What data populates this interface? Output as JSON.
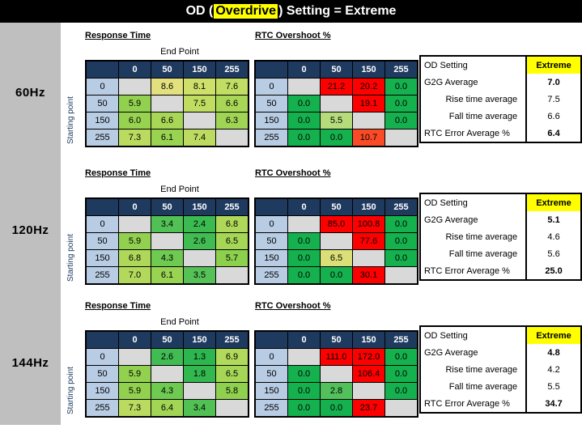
{
  "title": {
    "prefix": "OD (",
    "highlight": "Overdrive",
    "suffix": ") Setting = Extreme"
  },
  "shared": {
    "response_title": "Response Time",
    "overshoot_title": "RTC Overshoot %",
    "end_point_label": "End Point",
    "starting_point_label": "Starting point",
    "axis_values": [
      "0",
      "50",
      "150",
      "255"
    ]
  },
  "summary_labels": {
    "od": "OD Setting",
    "g2g": "G2G Average",
    "rise": "Rise time average",
    "fall": "Fall time average",
    "rtc": "RTC Error Average %"
  },
  "colors": {
    "header_navy": "#1F3A5F",
    "row_header_blue": "#B8CCE4",
    "diagonal_gray": "#D9D9D9",
    "sidebar_gray": "#BFBFBF",
    "highlight_yellow": "#FFFF00",
    "zero_green": "#15B14E",
    "overshoot_red": "#FF0000"
  },
  "chart_data": {
    "type": "heatmap",
    "x_axis": "End Point",
    "y_axis": "Starting point",
    "categories": [
      0,
      50,
      150,
      255
    ],
    "sections": [
      {
        "frequency": "60Hz",
        "response_time": {
          "values": [
            [
              null,
              8.6,
              8.1,
              7.6
            ],
            [
              5.9,
              null,
              7.5,
              6.6
            ],
            [
              6.0,
              6.6,
              null,
              6.3
            ],
            [
              7.3,
              6.1,
              7.4,
              null
            ]
          ],
          "colors": [
            [
              null,
              "#E2E17E",
              "#CEE06B",
              "#C2DD63"
            ],
            [
              "#92D14F",
              null,
              "#C0DC61",
              "#A8D657"
            ],
            [
              "#97D251",
              "#A8D657",
              null,
              "#9FD454"
            ],
            [
              "#BADB5F",
              "#99D352",
              "#BDDB60",
              null
            ]
          ]
        },
        "rtc_overshoot": {
          "values": [
            [
              null,
              21.2,
              20.2,
              0.0
            ],
            [
              0.0,
              null,
              19.1,
              0.0
            ],
            [
              0.0,
              5.5,
              null,
              0.0
            ],
            [
              0.0,
              0.0,
              10.7,
              null
            ]
          ],
          "colors": [
            [
              null,
              "#FF0000",
              "#FF0000",
              "#15B14E"
            ],
            [
              "#15B14E",
              null,
              "#FF0000",
              "#15B14E"
            ],
            [
              "#15B14E",
              "#B5DB7B",
              null,
              "#15B14E"
            ],
            [
              "#15B14E",
              "#15B14E",
              "#FA4B26",
              null
            ]
          ]
        },
        "summary": {
          "od_setting": "Extreme",
          "g2g_average": 7.0,
          "rise_time_average": 7.5,
          "fall_time_average": 6.6,
          "rtc_error_average": 6.4
        }
      },
      {
        "frequency": "120Hz",
        "response_time": {
          "values": [
            [
              null,
              3.4,
              2.4,
              6.8
            ],
            [
              5.9,
              null,
              2.6,
              6.5
            ],
            [
              6.8,
              4.3,
              null,
              5.7
            ],
            [
              7.0,
              6.1,
              3.5,
              null
            ]
          ],
          "colors": [
            [
              null,
              "#52C155",
              "#3BBA52",
              "#AFD85A"
            ],
            [
              "#92D14F",
              null,
              "#40BC53",
              "#A5D656"
            ],
            [
              "#AFD85A",
              "#6FCA52",
              null,
              "#8CD04E"
            ],
            [
              "#B3D95C",
              "#99D352",
              "#55C156",
              null
            ]
          ]
        },
        "rtc_overshoot": {
          "values": [
            [
              null,
              85.0,
              100.8,
              0.0
            ],
            [
              0.0,
              null,
              77.6,
              0.0
            ],
            [
              0.0,
              6.5,
              null,
              0.0
            ],
            [
              0.0,
              0.0,
              30.1,
              null
            ]
          ],
          "colors": [
            [
              null,
              "#FF0000",
              "#FF0000",
              "#15B14E"
            ],
            [
              "#15B14E",
              null,
              "#FF0000",
              "#15B14E"
            ],
            [
              "#15B14E",
              "#DAE077",
              null,
              "#15B14E"
            ],
            [
              "#15B14E",
              "#15B14E",
              "#FF0000",
              null
            ]
          ]
        },
        "summary": {
          "od_setting": "Extreme",
          "g2g_average": 5.1,
          "rise_time_average": 4.6,
          "fall_time_average": 5.6,
          "rtc_error_average": 25.0
        }
      },
      {
        "frequency": "144Hz",
        "response_time": {
          "values": [
            [
              null,
              2.6,
              1.3,
              6.9
            ],
            [
              5.9,
              null,
              1.8,
              6.5
            ],
            [
              5.9,
              4.3,
              null,
              5.8
            ],
            [
              7.3,
              6.4,
              3.4,
              null
            ]
          ],
          "colors": [
            [
              null,
              "#40BC53",
              "#2DB64F",
              "#B1D95B"
            ],
            [
              "#92D14F",
              null,
              "#33B850",
              "#A5D656"
            ],
            [
              "#92D14F",
              "#6FCA52",
              null,
              "#8FD04F"
            ],
            [
              "#BADB5F",
              "#A2D555",
              "#52C155",
              null
            ]
          ]
        },
        "rtc_overshoot": {
          "values": [
            [
              null,
              111.0,
              172.0,
              0.0
            ],
            [
              0.0,
              null,
              106.4,
              0.0
            ],
            [
              0.0,
              2.8,
              null,
              0.0
            ],
            [
              0.0,
              0.0,
              23.7,
              null
            ]
          ],
          "colors": [
            [
              null,
              "#FF0000",
              "#FF0000",
              "#15B14E"
            ],
            [
              "#15B14E",
              null,
              "#FF0000",
              "#15B14E"
            ],
            [
              "#15B14E",
              "#53C15B",
              null,
              "#15B14E"
            ],
            [
              "#15B14E",
              "#15B14E",
              "#FF0000",
              null
            ]
          ]
        },
        "summary": {
          "od_setting": "Extreme",
          "g2g_average": 4.8,
          "rise_time_average": 4.2,
          "fall_time_average": 5.5,
          "rtc_error_average": 34.7
        }
      }
    ]
  }
}
